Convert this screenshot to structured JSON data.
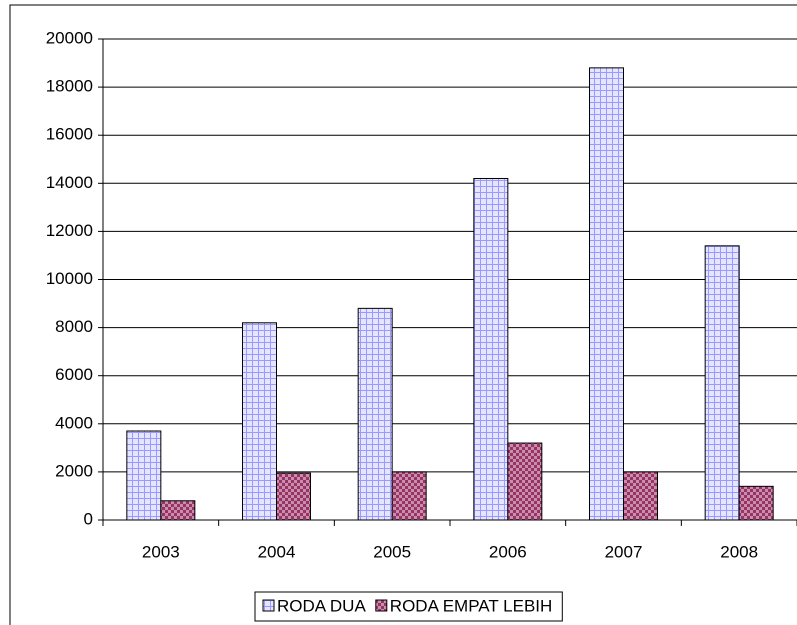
{
  "chart_data": {
    "type": "bar",
    "categories": [
      "2003",
      "2004",
      "2005",
      "2006",
      "2007",
      "2008"
    ],
    "series": [
      {
        "name": "RODA DUA",
        "color": "#9999ff",
        "values": [
          3700,
          8200,
          8800,
          14200,
          18800,
          11400
        ]
      },
      {
        "name": "RODA EMPAT LEBIH",
        "color": "#993366",
        "values": [
          800,
          1950,
          2000,
          3200,
          2000,
          1400
        ]
      }
    ],
    "ylim": [
      0,
      20000
    ],
    "yticks": [
      0,
      2000,
      4000,
      6000,
      8000,
      10000,
      12000,
      14000,
      16000,
      18000,
      20000
    ],
    "grid": true,
    "legend": "bottom"
  }
}
